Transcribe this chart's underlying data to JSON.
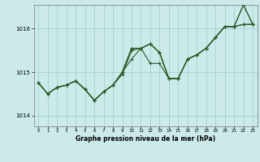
{
  "title": "Graphe pression niveau de la mer (hPa)",
  "bg_color": "#cceaea",
  "grid_color": "#99cccc",
  "line_color": "#2d5a27",
  "xlim": [
    -0.5,
    23.5
  ],
  "ylim": [
    1013.75,
    1016.55
  ],
  "yticks": [
    1014,
    1015,
    1016
  ],
  "xticks": [
    0,
    1,
    2,
    3,
    4,
    5,
    6,
    7,
    8,
    9,
    10,
    11,
    12,
    13,
    14,
    15,
    16,
    17,
    18,
    19,
    20,
    21,
    22,
    23
  ],
  "line1": [
    1014.75,
    1014.5,
    1014.65,
    1014.7,
    1014.8,
    1014.6,
    1014.35,
    1014.55,
    1014.7,
    1014.95,
    1015.5,
    1015.55,
    1015.65,
    1015.45,
    1014.85,
    1014.85,
    1015.3,
    1015.4,
    1015.55,
    1015.8,
    1016.05,
    1016.05,
    1016.55,
    1016.1
  ],
  "line2": [
    1014.75,
    1014.5,
    1014.65,
    1014.7,
    1014.8,
    1014.6,
    1014.35,
    1014.55,
    1014.7,
    1015.0,
    1015.3,
    1015.55,
    1015.65,
    1015.45,
    1014.85,
    1014.85,
    1015.3,
    1015.4,
    1015.55,
    1015.8,
    1016.05,
    1016.05,
    1016.1,
    1016.1
  ],
  "line3": [
    1014.75,
    1014.5,
    1014.65,
    1014.7,
    1014.8,
    1014.6,
    1014.35,
    1014.55,
    1014.7,
    1015.0,
    1015.55,
    1015.55,
    1015.2,
    1015.2,
    1014.85,
    1014.85,
    1015.3,
    1015.4,
    1015.55,
    1015.8,
    1016.05,
    1016.05,
    1016.55,
    1016.1
  ],
  "line4": [
    1014.75,
    1014.5,
    1014.65,
    1014.7,
    1014.8,
    1014.6,
    1014.35,
    1014.55,
    1014.7,
    1015.0,
    1015.55,
    1015.55,
    1015.65,
    1015.45,
    1014.85,
    1014.85,
    1015.3,
    1015.4,
    1015.55,
    1015.8,
    1016.05,
    1016.05,
    1016.1,
    1016.1
  ]
}
